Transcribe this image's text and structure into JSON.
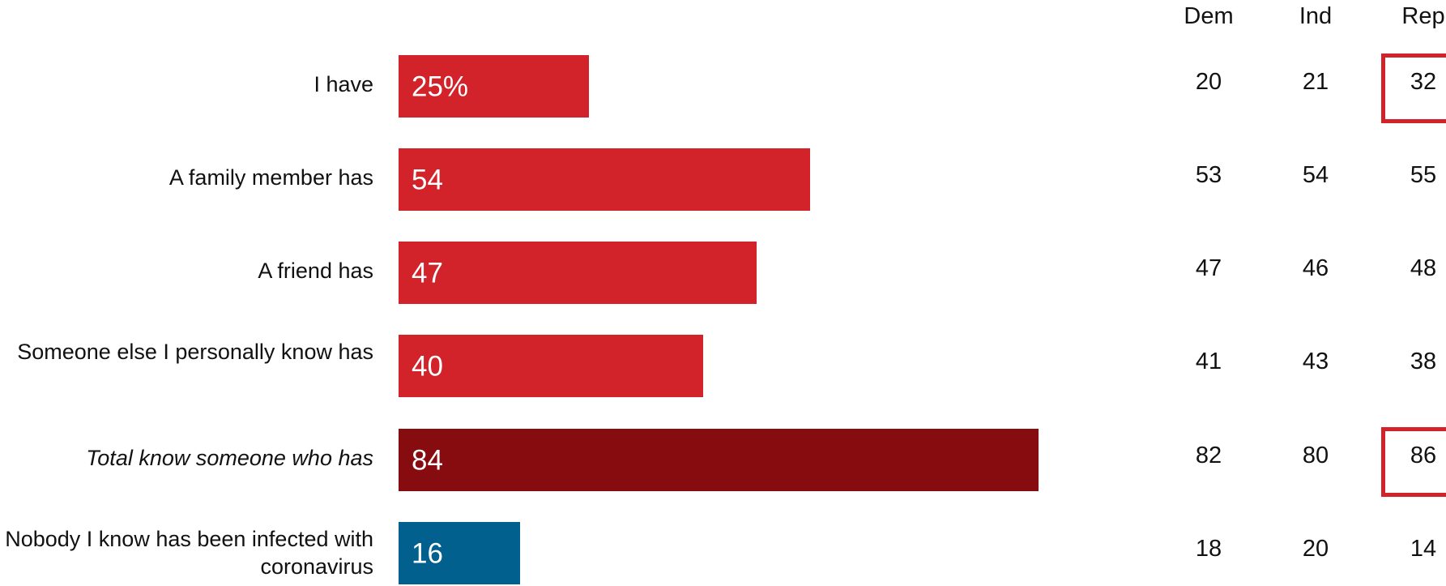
{
  "chart_data": {
    "type": "bar",
    "orientation": "horizontal",
    "categories": [
      "I have",
      "A family member has",
      "A friend has",
      "Someone else I personally know has",
      "Total know someone who has",
      "Nobody I know has been infected with coronavirus"
    ],
    "values": [
      25,
      54,
      47,
      40,
      84,
      16
    ],
    "value_labels": [
      "25%",
      "54",
      "47",
      "40",
      "84",
      "16"
    ],
    "bar_colors": [
      "#d2232a",
      "#d2232a",
      "#d2232a",
      "#d2232a",
      "#860c10",
      "#02608f"
    ],
    "italic_category_index": 4,
    "xlim": [
      0,
      100
    ],
    "table": {
      "columns": [
        "Dem",
        "Ind",
        "Rep"
      ],
      "rows": [
        [
          20,
          21,
          32
        ],
        [
          53,
          54,
          55
        ],
        [
          47,
          46,
          48
        ],
        [
          41,
          43,
          38
        ],
        [
          82,
          80,
          86
        ],
        [
          18,
          20,
          14
        ]
      ],
      "highlighted_cells": [
        {
          "row": 0,
          "col": 2
        },
        {
          "row": 4,
          "col": 2
        }
      ],
      "highlight_color": "#d2232a"
    }
  }
}
